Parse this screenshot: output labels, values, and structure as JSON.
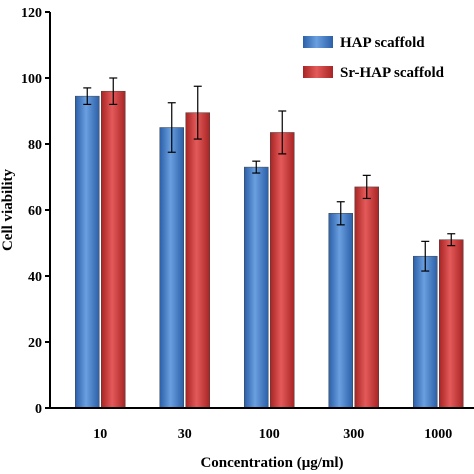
{
  "chart_data": {
    "type": "bar",
    "categories": [
      "10",
      "30",
      "100",
      "300",
      "1000"
    ],
    "series": [
      {
        "name": "HAP scaffold",
        "values": [
          94.5,
          85,
          73,
          59,
          46
        ],
        "errors": [
          2.5,
          7.5,
          1.8,
          3.5,
          4.5
        ],
        "color": "#3a78c8"
      },
      {
        "name": "Sr-HAP scaffold",
        "values": [
          96,
          89.5,
          83.5,
          67,
          51
        ],
        "errors": [
          4,
          8,
          6.5,
          3.5,
          1.8
        ],
        "color": "#d23a3a"
      }
    ],
    "xlabel": "Concentration (μg/ml)",
    "ylabel": "Cell viability",
    "ylim": [
      0,
      120
    ],
    "yticks": [
      "0",
      "20",
      "40",
      "60",
      "80",
      "100",
      "120"
    ],
    "legend_position": "top-right",
    "grid": false
  }
}
